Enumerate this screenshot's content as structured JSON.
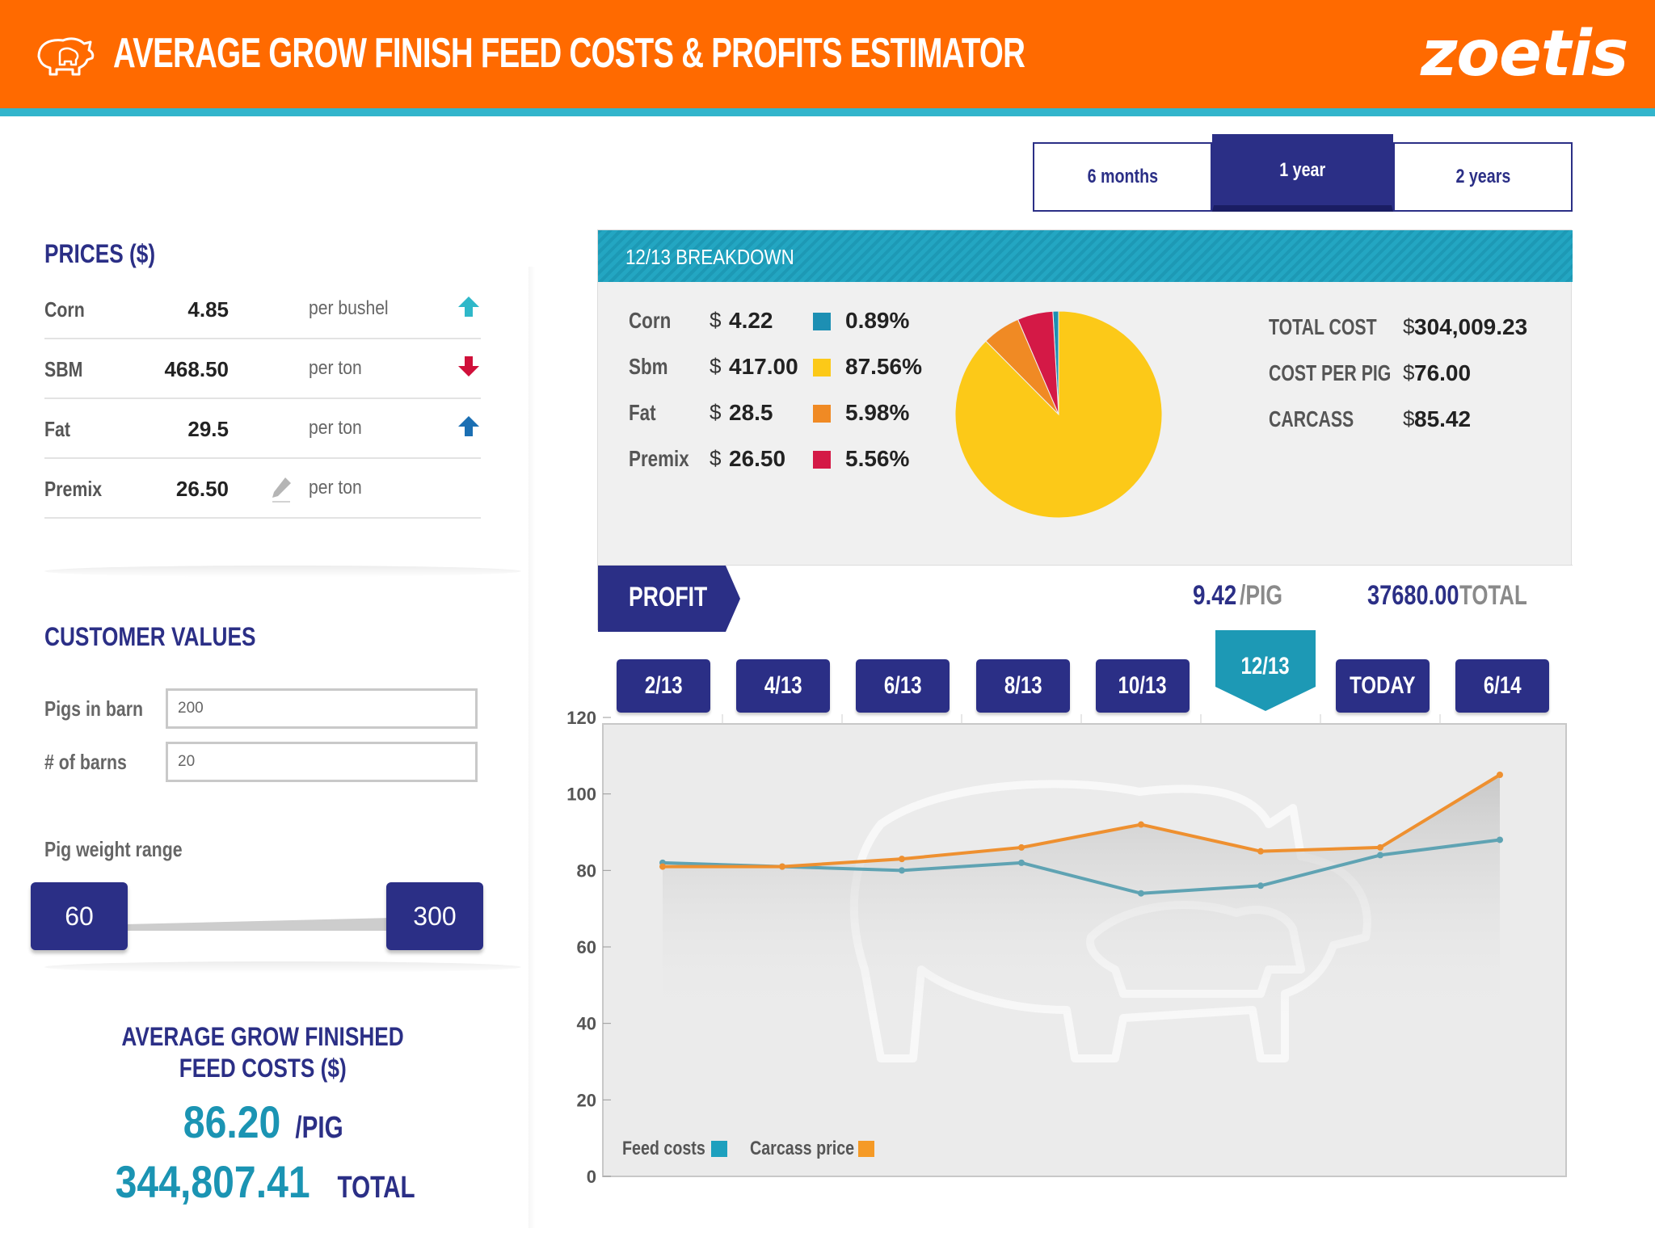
{
  "header": {
    "title": "AVERAGE GROW FINISH FEED COSTS & PROFITS ESTIMATOR",
    "logo": "zoetis",
    "icon": "pig-icon",
    "brand_color": "#ff6a00",
    "stripe_color": "#33b5cc"
  },
  "period_tabs": [
    {
      "label": "6 months",
      "active": false
    },
    {
      "label": "1 year",
      "active": true
    },
    {
      "label": "2 years",
      "active": false
    }
  ],
  "prices": {
    "title": "PRICES ($)",
    "rows": [
      {
        "name": "Corn",
        "value": "4.85",
        "unit": "per bushel",
        "icon": "arrow-up-icon",
        "color": "#2fb8c9"
      },
      {
        "name": "SBM",
        "value": "468.50",
        "unit": "per ton",
        "icon": "arrow-down-icon",
        "color": "#d0103a"
      },
      {
        "name": "Fat",
        "value": "29.5",
        "unit": "per ton",
        "icon": "arrow-up-icon",
        "color": "#1b6fb3"
      },
      {
        "name": "Premix",
        "value": "26.50",
        "unit": "per ton",
        "icon": "pencil-icon",
        "color": "#b5b5b5"
      }
    ]
  },
  "customer": {
    "title": "CUSTOMER VALUES",
    "pigs_label": "Pigs in barn",
    "pigs_value": "200",
    "barns_label": "# of barns",
    "barns_value": "20",
    "weight_label": "Pig weight range",
    "weight_min": "60",
    "weight_max": "300"
  },
  "average": {
    "title_line1": "AVERAGE GROW FINISHED",
    "title_line2": "FEED COSTS ($)",
    "per_pig": "86.20",
    "per_pig_suffix": "/PIG",
    "total": "344,807.41",
    "total_suffix": "TOTAL"
  },
  "breakdown": {
    "title": "12/13 BREAKDOWN",
    "currency": "$",
    "rows": [
      {
        "name": "Corn",
        "value": "4.22",
        "percent": "0.89%",
        "share": 0.89,
        "color": "#1d8fb3"
      },
      {
        "name": "Sbm",
        "value": "417.00",
        "percent": "87.56%",
        "share": 87.56,
        "color": "#fcc918"
      },
      {
        "name": "Fat",
        "value": "28.5",
        "percent": "5.98%",
        "share": 5.98,
        "color": "#f08a24"
      },
      {
        "name": "Premix",
        "value": "26.50",
        "percent": "5.56%",
        "share": 5.56,
        "color": "#d41946"
      }
    ],
    "summary": [
      {
        "name": "TOTAL COST",
        "value": "304,009.23"
      },
      {
        "name": "COST PER PIG",
        "value": "76.00"
      },
      {
        "name": "CARCASS",
        "value": "85.42"
      }
    ],
    "profit": {
      "label": "PROFIT",
      "per_pig": "9.42",
      "per_pig_suffix": "/PIG",
      "total": "37680.00",
      "total_suffix": "TOTAL"
    }
  },
  "timeline": [
    {
      "label": "2/13",
      "active": false
    },
    {
      "label": "4/13",
      "active": false
    },
    {
      "label": "6/13",
      "active": false
    },
    {
      "label": "8/13",
      "active": false
    },
    {
      "label": "10/13",
      "active": false
    },
    {
      "label": "12/13",
      "active": true
    },
    {
      "label": "TODAY",
      "active": false
    },
    {
      "label": "6/14",
      "active": false
    }
  ],
  "chart_data": {
    "type": "line",
    "categories": [
      "2/13",
      "4/13",
      "6/13",
      "8/13",
      "10/13",
      "12/13",
      "TODAY",
      "6/14"
    ],
    "ylim": [
      0,
      120
    ],
    "yticks": [
      "0",
      "20",
      "40",
      "60",
      "80",
      "100",
      "120"
    ],
    "series": [
      {
        "name": "Feed costs",
        "color": "#5fa3b3",
        "values": [
          82,
          81,
          80,
          82,
          74,
          76,
          84,
          88
        ]
      },
      {
        "name": "Carcass price",
        "color": "#ee9030",
        "values": [
          81,
          81,
          83,
          86,
          92,
          85,
          86,
          105
        ]
      }
    ],
    "legend_swatches": [
      "#1da0be",
      "#f59a26"
    ],
    "legend_position": "bottom-left"
  }
}
